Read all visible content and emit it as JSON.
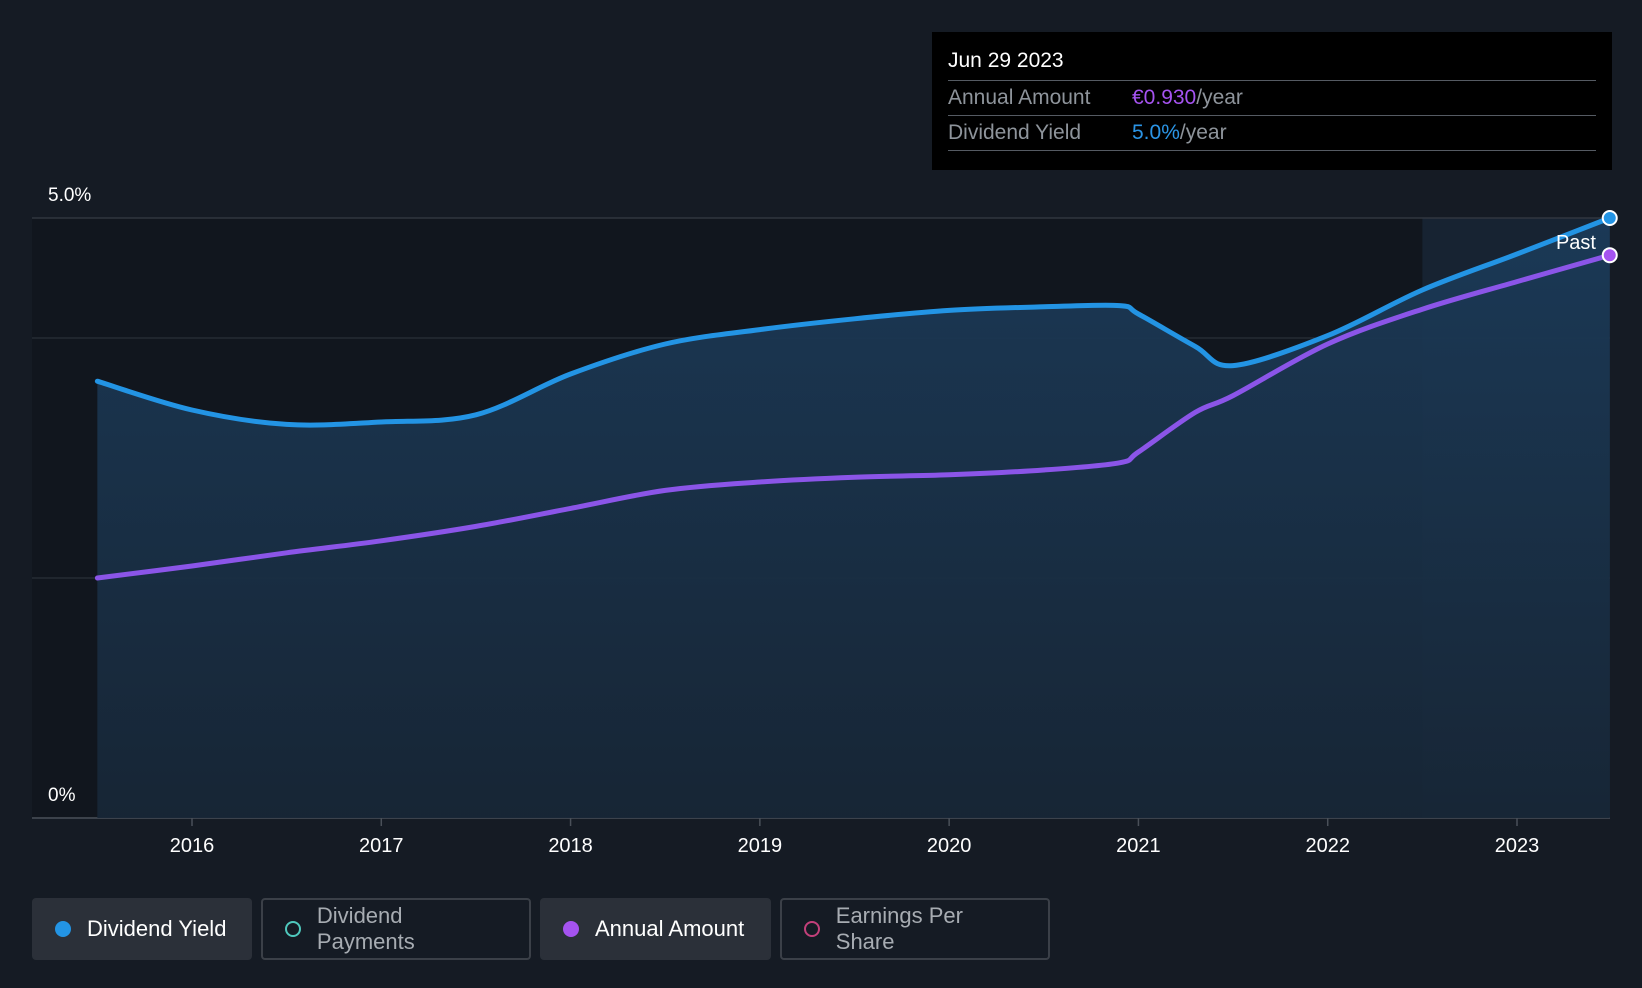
{
  "tooltip": {
    "date": "Jun 29 2023",
    "annual_amount_label": "Annual Amount",
    "annual_amount_value": "€0.930",
    "annual_amount_unit": "/year",
    "dividend_yield_label": "Dividend Yield",
    "dividend_yield_value": "5.0%",
    "dividend_yield_unit": "/year"
  },
  "past_label": "Past",
  "legend": [
    {
      "label": "Dividend Yield",
      "color": "#2394e4",
      "active": true,
      "filled": true
    },
    {
      "label": "Dividend Payments",
      "color": "#4fc8bd",
      "active": false,
      "filled": false
    },
    {
      "label": "Annual Amount",
      "color": "#a553f0",
      "active": true,
      "filled": true
    },
    {
      "label": "Earnings Per Share",
      "color": "#c2407a",
      "active": false,
      "filled": false
    }
  ],
  "colors": {
    "background": "#151b24",
    "yield_line": "#2394e4",
    "amount_line": "#8b55e8",
    "area_fill": "#1c3550",
    "grid": "#3a4049"
  },
  "chart_data": {
    "type": "line",
    "x_ticks": [
      "2016",
      "2017",
      "2018",
      "2019",
      "2020",
      "2021",
      "2022",
      "2023"
    ],
    "y_ticks": [
      {
        "value": 5.0,
        "label": "5.0%"
      },
      {
        "value": 0,
        "label": "0%"
      }
    ],
    "ylim": [
      0,
      5.0
    ],
    "xlim": [
      2015.3,
      2023.5
    ],
    "past_region_start": 2022.5,
    "series": [
      {
        "name": "Dividend Yield",
        "unit": "%",
        "points": [
          [
            2015.5,
            3.64
          ],
          [
            2016.0,
            3.4
          ],
          [
            2016.5,
            3.28
          ],
          [
            2017.0,
            3.3
          ],
          [
            2017.5,
            3.36
          ],
          [
            2018.0,
            3.7
          ],
          [
            2018.5,
            3.95
          ],
          [
            2019.0,
            4.07
          ],
          [
            2019.5,
            4.16
          ],
          [
            2020.0,
            4.23
          ],
          [
            2020.5,
            4.26
          ],
          [
            2020.9,
            4.27
          ],
          [
            2021.0,
            4.2
          ],
          [
            2021.3,
            3.93
          ],
          [
            2021.5,
            3.77
          ],
          [
            2022.0,
            4.02
          ],
          [
            2022.5,
            4.4
          ],
          [
            2023.0,
            4.7
          ],
          [
            2023.49,
            5.0
          ]
        ]
      },
      {
        "name": "Annual Amount",
        "unit": "€",
        "points": [
          [
            2015.5,
            2.0
          ],
          [
            2016.0,
            2.1
          ],
          [
            2016.5,
            2.21
          ],
          [
            2017.0,
            2.31
          ],
          [
            2017.5,
            2.43
          ],
          [
            2018.0,
            2.58
          ],
          [
            2018.5,
            2.73
          ],
          [
            2019.0,
            2.8
          ],
          [
            2019.5,
            2.84
          ],
          [
            2020.0,
            2.86
          ],
          [
            2020.5,
            2.9
          ],
          [
            2020.9,
            2.96
          ],
          [
            2021.0,
            3.05
          ],
          [
            2021.3,
            3.38
          ],
          [
            2021.5,
            3.52
          ],
          [
            2022.0,
            3.95
          ],
          [
            2022.5,
            4.24
          ],
          [
            2023.0,
            4.47
          ],
          [
            2023.49,
            4.69
          ]
        ]
      }
    ]
  }
}
